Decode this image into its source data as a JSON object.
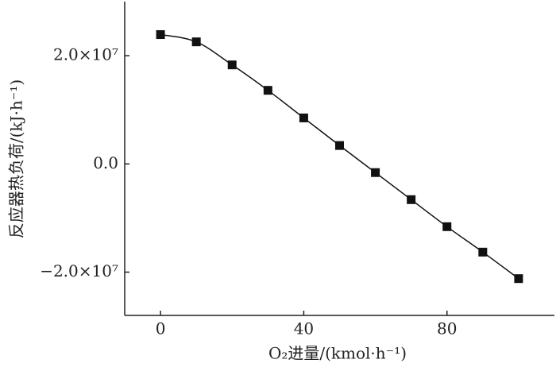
{
  "chart_data": {
    "type": "line",
    "x_label": "O₂进量/(kmol·h⁻¹)",
    "y_label": "反应器热负荷/(kJ·h⁻¹)",
    "x": [
      0,
      10,
      20,
      30,
      40,
      50,
      60,
      70,
      80,
      90,
      100
    ],
    "series": [
      {
        "color": "#111111",
        "values": [
          23900000,
          22560000,
          18300000,
          13600000,
          8500000,
          3400000,
          -1600000,
          -6600000,
          -11600000,
          -16300000,
          -21200000
        ]
      }
    ],
    "xlim": [
      -10,
      110
    ],
    "xticks": [
      0,
      40,
      80
    ],
    "ylim": [
      -28000000,
      30000000
    ],
    "yticks": [
      {
        "value": -20000000,
        "label": "−2.0×10⁷"
      },
      {
        "value": 0,
        "label": "0.0"
      },
      {
        "value": 20000000,
        "label": "2.0×10⁷"
      }
    ]
  }
}
